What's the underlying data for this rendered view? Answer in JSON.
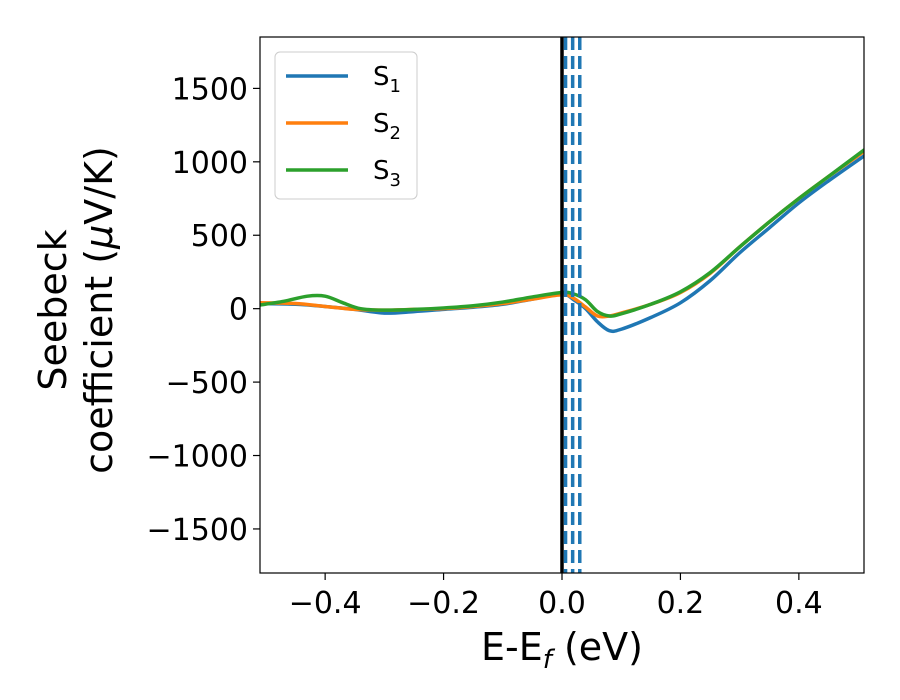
{
  "chart_data": {
    "type": "line",
    "xlabel": "E-E",
    "xlabel_sub": "f",
    "xlabel_unit": " (eV)",
    "ylabel_line1": "Seebeck",
    "ylabel_line2": "coefficient  (",
    "ylabel_mu": "μ",
    "ylabel_unit": "V/K)",
    "xlim": [
      -0.51,
      0.51
    ],
    "ylim": [
      -1800,
      1850
    ],
    "xticks": [
      -0.4,
      -0.2,
      0.0,
      0.2,
      0.4
    ],
    "xtick_labels": [
      "−0.4",
      "−0.2",
      "0.0",
      "0.2",
      "0.4"
    ],
    "yticks": [
      -1500,
      -1000,
      -500,
      0,
      500,
      1000,
      1500
    ],
    "ytick_labels": [
      "−1500",
      "−1000",
      "−500",
      "0",
      "500",
      "1000",
      "1500"
    ],
    "grid": false,
    "legend_position": "top-left",
    "vertical_lines": [
      {
        "x": 0.0,
        "style": "solid",
        "color": "#000000"
      },
      {
        "x": 0.006,
        "style": "dashed",
        "color": "#1f77b4"
      },
      {
        "x": 0.018,
        "style": "dashed",
        "color": "#1f77b4"
      },
      {
        "x": 0.03,
        "style": "dashed",
        "color": "#1f77b4"
      }
    ],
    "series": [
      {
        "name": "S",
        "sub": "1",
        "color": "#1f77b4",
        "x": [
          -0.51,
          -0.45,
          -0.4,
          -0.35,
          -0.3,
          -0.25,
          -0.2,
          -0.15,
          -0.1,
          -0.05,
          0.0,
          0.02,
          0.04,
          0.06,
          0.08,
          0.1,
          0.15,
          0.2,
          0.25,
          0.3,
          0.35,
          0.4,
          0.45,
          0.51
        ],
        "y": [
          35,
          30,
          15,
          -5,
          -30,
          -20,
          -5,
          10,
          30,
          65,
          100,
          60,
          0,
          -90,
          -150,
          -140,
          -60,
          40,
          190,
          380,
          550,
          720,
          870,
          1040
        ]
      },
      {
        "name": "S",
        "sub": "2",
        "color": "#ff7f0e",
        "x": [
          -0.51,
          -0.45,
          -0.4,
          -0.35,
          -0.3,
          -0.25,
          -0.2,
          -0.15,
          -0.1,
          -0.05,
          0.0,
          0.02,
          0.04,
          0.06,
          0.08,
          0.1,
          0.15,
          0.2,
          0.25,
          0.3,
          0.35,
          0.4,
          0.45,
          0.51
        ],
        "y": [
          40,
          35,
          15,
          -5,
          -10,
          -5,
          0,
          15,
          35,
          65,
          95,
          70,
          10,
          -50,
          -50,
          -30,
          30,
          110,
          240,
          420,
          590,
          750,
          900,
          1070
        ]
      },
      {
        "name": "S",
        "sub": "3",
        "color": "#2ca02c",
        "x": [
          -0.51,
          -0.47,
          -0.43,
          -0.4,
          -0.37,
          -0.34,
          -0.3,
          -0.25,
          -0.2,
          -0.15,
          -0.1,
          -0.05,
          0.0,
          0.02,
          0.04,
          0.06,
          0.08,
          0.1,
          0.15,
          0.2,
          0.25,
          0.3,
          0.35,
          0.4,
          0.45,
          0.51
        ],
        "y": [
          25,
          50,
          85,
          85,
          40,
          0,
          -10,
          -5,
          5,
          20,
          45,
          80,
          110,
          100,
          60,
          -20,
          -50,
          -35,
          30,
          115,
          245,
          420,
          590,
          750,
          900,
          1080
        ]
      }
    ]
  }
}
